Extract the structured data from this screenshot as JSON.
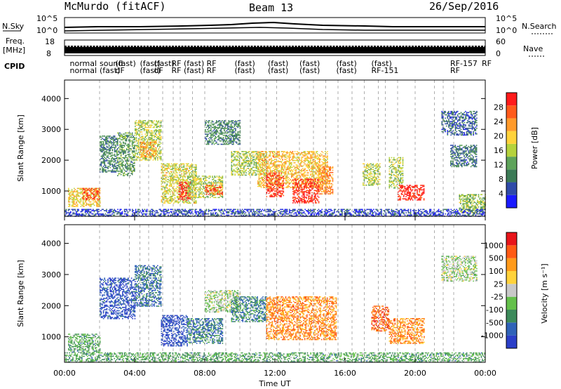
{
  "header": {
    "station": "McMurdo (fitACF)",
    "beam": "Beam 13",
    "date": "26/Sep/2016"
  },
  "top_panels": {
    "nsky_label": "N.Sky",
    "nsky_ticks": [
      "10^5",
      "10^0"
    ],
    "nsearch_label": "N.Search",
    "nsearch_ticks": [
      "10^5",
      "10^0"
    ],
    "freq_label": "Freq.",
    "freq_unit": "[MHz]",
    "freq_ticks": [
      "18",
      "8"
    ],
    "nave_label": "Nave",
    "nave_ticks": [
      "60",
      "0"
    ],
    "cpid_label": "CPID",
    "cpid_row1": [
      "normal",
      "sound",
      "(fast)",
      "(fast)",
      "(fast)",
      "RF",
      "(fast)",
      "RF",
      "(fast)",
      "(fast)",
      "(fast)",
      "(fast)",
      "(fast)",
      "RF-157",
      "RF"
    ],
    "cpid_row2": [
      "normal",
      "(fast)",
      "dF",
      "(fast)",
      "dF",
      "RF",
      "(fast)",
      "RF",
      "(fast)",
      "(fast)",
      "(fast)",
      "(fast)",
      "RF-151",
      "RF"
    ]
  },
  "chart_data": [
    {
      "type": "heatmap",
      "name": "power",
      "ylabel": "Slant Range [km]",
      "xlabel": "Time UT",
      "x_ticks": [
        "00:00",
        "04:00",
        "08:00",
        "12:00",
        "16:00",
        "20:00",
        "00:00"
      ],
      "x_range_hours": [
        0,
        24
      ],
      "y_ticks": [
        1000,
        2000,
        3000,
        4000
      ],
      "ylim": [
        180,
        4600
      ],
      "colorbar_label": "Power [dB]",
      "colorbar_ticks": [
        "28",
        "24",
        "20",
        "16",
        "12",
        "8",
        "4"
      ],
      "colors": [
        "#1a1aff",
        "#2f4aa8",
        "#3b7a55",
        "#5ea35a",
        "#b5d23c",
        "#ffd23a",
        "#ff9a2a",
        "#ff5a1a",
        "#ff1a1a"
      ],
      "patches": [
        {
          "t0": 0.2,
          "t1": 2.0,
          "r0": 500,
          "r1": 1100,
          "v": 0.6
        },
        {
          "t0": 1.0,
          "t1": 2.0,
          "r0": 700,
          "r1": 1100,
          "v": 0.85
        },
        {
          "t0": 2.0,
          "t1": 3.0,
          "r0": 1600,
          "r1": 2800,
          "v": 0.3
        },
        {
          "t0": 3.0,
          "t1": 4.0,
          "r0": 1500,
          "r1": 2900,
          "v": 0.35
        },
        {
          "t0": 4.0,
          "t1": 5.5,
          "r0": 2000,
          "r1": 3300,
          "v": 0.5
        },
        {
          "t0": 4.3,
          "t1": 5.2,
          "r0": 2100,
          "r1": 2600,
          "v": 0.7
        },
        {
          "t0": 5.5,
          "t1": 7.5,
          "r0": 600,
          "r1": 1900,
          "v": 0.55
        },
        {
          "t0": 6.5,
          "t1": 7.2,
          "r0": 700,
          "r1": 1300,
          "v": 0.95
        },
        {
          "t0": 7.0,
          "t1": 9.0,
          "r0": 800,
          "r1": 1500,
          "v": 0.5
        },
        {
          "t0": 8.0,
          "t1": 9.0,
          "r0": 900,
          "r1": 1200,
          "v": 0.85
        },
        {
          "t0": 8.0,
          "t1": 10.0,
          "r0": 2500,
          "r1": 3300,
          "v": 0.3
        },
        {
          "t0": 9.5,
          "t1": 11.5,
          "r0": 1500,
          "r1": 2300,
          "v": 0.5
        },
        {
          "t0": 11.0,
          "t1": 15.0,
          "r0": 1100,
          "r1": 2300,
          "v": 0.65
        },
        {
          "t0": 11.5,
          "t1": 12.5,
          "r0": 800,
          "r1": 1600,
          "v": 0.9
        },
        {
          "t0": 13.0,
          "t1": 14.5,
          "r0": 600,
          "r1": 1400,
          "v": 0.92
        },
        {
          "t0": 14.5,
          "t1": 15.3,
          "r0": 900,
          "r1": 1800,
          "v": 0.75
        },
        {
          "t0": 17.0,
          "t1": 18.0,
          "r0": 1200,
          "r1": 1900,
          "v": 0.5
        },
        {
          "t0": 18.5,
          "t1": 19.3,
          "r0": 1100,
          "r1": 2100,
          "v": 0.5
        },
        {
          "t0": 19.0,
          "t1": 20.5,
          "r0": 700,
          "r1": 1200,
          "v": 0.95
        },
        {
          "t0": 21.5,
          "t1": 23.5,
          "r0": 2800,
          "r1": 3600,
          "v": 0.2
        },
        {
          "t0": 22.0,
          "t1": 23.5,
          "r0": 1800,
          "r1": 2500,
          "v": 0.25
        },
        {
          "t0": 22.5,
          "t1": 24.0,
          "r0": 300,
          "r1": 900,
          "v": 0.45
        },
        {
          "t0": 0.0,
          "t1": 24.0,
          "r0": 200,
          "r1": 420,
          "v": 0.15
        }
      ]
    },
    {
      "type": "heatmap",
      "name": "velocity",
      "ylabel": "Slant Range [km]",
      "xlabel": "Time UT",
      "x_ticks": [
        "00:00",
        "04:00",
        "08:00",
        "12:00",
        "16:00",
        "20:00",
        "00:00"
      ],
      "x_range_hours": [
        0,
        24
      ],
      "y_ticks": [
        1000,
        2000,
        3000,
        4000
      ],
      "ylim": [
        180,
        4600
      ],
      "colorbar_label": "Velocity [m s⁻¹]",
      "colorbar_ticks": [
        "1000",
        "500",
        "100",
        "25",
        "-25",
        "-100",
        "-500",
        "-1000"
      ],
      "colors": [
        "#2a3ec8",
        "#2f62b8",
        "#3c8a5a",
        "#63c04a",
        "#c8c8c8",
        "#ffd23a",
        "#ff9a1a",
        "#ff5a14",
        "#e8141a"
      ],
      "patches": [
        {
          "t0": 0.2,
          "t1": 2.0,
          "r0": 500,
          "r1": 1100,
          "v": 0.35
        },
        {
          "t0": 2.0,
          "t1": 4.0,
          "r0": 1600,
          "r1": 2900,
          "v": 0.1
        },
        {
          "t0": 4.0,
          "t1": 5.5,
          "r0": 2000,
          "r1": 3300,
          "v": 0.2
        },
        {
          "t0": 5.5,
          "t1": 7.0,
          "r0": 700,
          "r1": 1700,
          "v": 0.08
        },
        {
          "t0": 7.0,
          "t1": 9.0,
          "r0": 800,
          "r1": 1600,
          "v": 0.22
        },
        {
          "t0": 8.0,
          "t1": 10.0,
          "r0": 1800,
          "r1": 2500,
          "v": 0.45
        },
        {
          "t0": 9.5,
          "t1": 11.5,
          "r0": 1500,
          "r1": 2300,
          "v": 0.25
        },
        {
          "t0": 11.5,
          "t1": 15.5,
          "r0": 900,
          "r1": 2300,
          "v": 0.75
        },
        {
          "t0": 17.5,
          "t1": 18.5,
          "r0": 1200,
          "r1": 2000,
          "v": 0.82
        },
        {
          "t0": 18.5,
          "t1": 20.5,
          "r0": 800,
          "r1": 1600,
          "v": 0.75
        },
        {
          "t0": 21.5,
          "t1": 23.5,
          "r0": 2800,
          "r1": 3600,
          "v": 0.45
        },
        {
          "t0": 0.0,
          "t1": 24.0,
          "r0": 200,
          "r1": 500,
          "v": 0.35
        }
      ]
    }
  ],
  "marker_hours": [
    2,
    3.7,
    4.3,
    4.8,
    5.6,
    6.2,
    6.6,
    7.3,
    8.0,
    9.2,
    10.0,
    10.6,
    11.5,
    12.1,
    13.4,
    14.2,
    14.9,
    15.6,
    16.4,
    17.1,
    17.9,
    18.3,
    19.0,
    20.0,
    21.1,
    21.6,
    22.2
  ]
}
